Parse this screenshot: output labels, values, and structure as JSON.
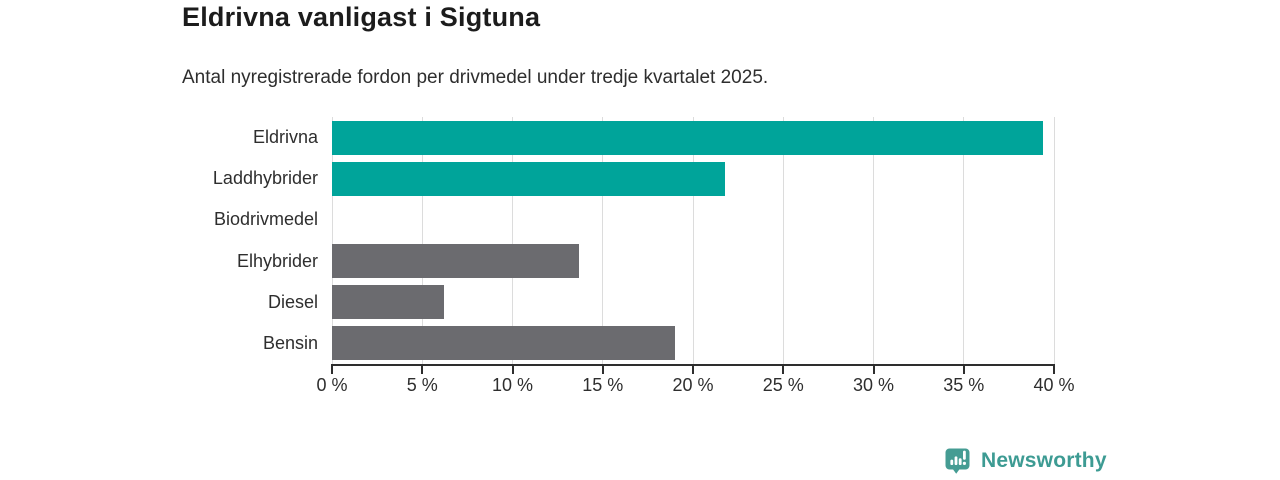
{
  "chart_data": {
    "type": "bar",
    "orientation": "horizontal",
    "title": "Eldrivna vanligast i Sigtuna",
    "subtitle": "Antal nyregistrerade fordon per drivmedel under tredje kvartalet 2025.",
    "categories": [
      "Eldrivna",
      "Laddhybrider",
      "Biodrivmedel",
      "Elhybrider",
      "Diesel",
      "Bensin"
    ],
    "values": [
      39.4,
      21.8,
      0,
      13.7,
      6.2,
      19.0
    ],
    "unit": "%",
    "xlim": [
      0,
      40
    ],
    "x_ticks": [
      "0 %",
      "5 %",
      "10 %",
      "15 %",
      "20 %",
      "25 %",
      "30 %",
      "35 %",
      "40 %"
    ],
    "bar_colors": [
      "#00a49a",
      "#00a49a",
      "#6b6b6f",
      "#6b6b6f",
      "#6b6b6f",
      "#6b6b6f"
    ],
    "grid": true,
    "legend": "none",
    "colors": {
      "highlight": "#00a49a",
      "default_bar": "#6b6b6f",
      "gridline": "#dcdcdc",
      "axis": "#2e2e2e",
      "title_text": "#1c1c1c",
      "body_text": "#2e2e2e"
    }
  },
  "branding": {
    "logo_text": "Newsworthy",
    "logo_color": "#3d9b93",
    "icon": "newsworthy-speech-bubble-bar-chart-icon"
  }
}
